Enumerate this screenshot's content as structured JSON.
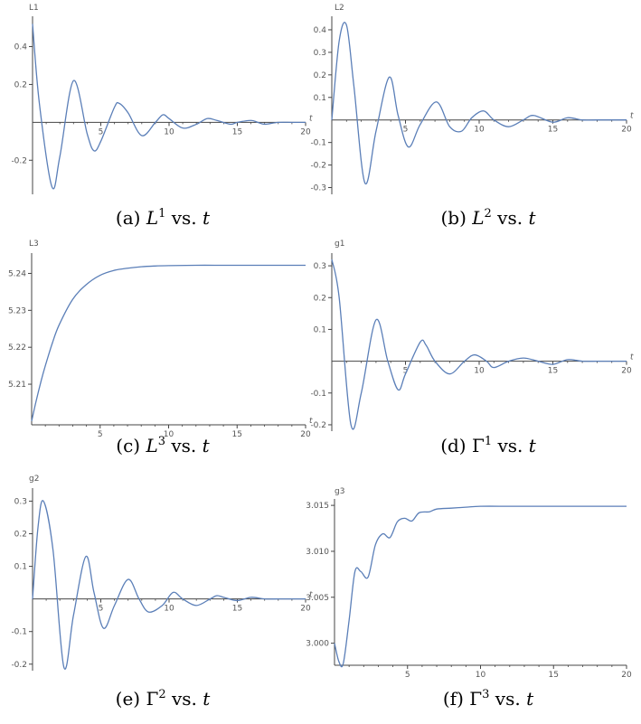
{
  "style": {
    "line_color": "#5b7fb8",
    "axis_color": "#444444",
    "text_color": "#555555"
  },
  "chart_data": [
    {
      "id": "a",
      "type": "line",
      "ylabel": "L1",
      "xlabel": "t",
      "xlim": [
        0,
        20
      ],
      "ylim": [
        -0.38,
        0.56
      ],
      "x_axis_at": 0,
      "xticks": [
        5,
        10,
        15,
        20
      ],
      "yticks": [
        -0.2,
        0.2,
        0.4
      ],
      "caption": {
        "prefix": "(a)",
        "symbol": "L",
        "sup": "1",
        "suffix": "vs.",
        "var": "t"
      },
      "series": [
        {
          "x": [
            0,
            0.5,
            1.42,
            2,
            3,
            4,
            4.5,
            5,
            6,
            6.35,
            7,
            8,
            9,
            9.55,
            10,
            11,
            12,
            12.8,
            13.5,
            14.5,
            15,
            16,
            16.5,
            17,
            18,
            19,
            20
          ],
          "y": [
            0.52,
            0.1,
            -0.34,
            -0.18,
            0.22,
            -0.06,
            -0.15,
            -0.1,
            0.08,
            0.1,
            0.05,
            -0.07,
            0.0,
            0.04,
            0.02,
            -0.03,
            -0.01,
            0.02,
            0.01,
            -0.01,
            0.0,
            0.01,
            0.0,
            -0.01,
            0.0,
            0.0,
            0.0
          ]
        }
      ]
    },
    {
      "id": "b",
      "type": "line",
      "ylabel": "L2",
      "xlabel": "t",
      "xlim": [
        0,
        20
      ],
      "ylim": [
        -0.33,
        0.46
      ],
      "x_axis_at": 0,
      "xticks": [
        5,
        10,
        15,
        20
      ],
      "yticks": [
        -0.3,
        -0.2,
        -0.1,
        0.1,
        0.2,
        0.3,
        0.4
      ],
      "caption": {
        "prefix": "(b)",
        "symbol": "L",
        "sup": "2",
        "suffix": "vs.",
        "var": "t"
      },
      "series": [
        {
          "x": [
            0,
            0.5,
            1,
            1.5,
            2.25,
            3,
            3.9,
            4.5,
            5.2,
            6,
            7.1,
            8,
            8.8,
            9.5,
            10.3,
            11,
            12,
            13,
            13.7,
            15,
            16,
            17,
            18,
            19,
            20
          ],
          "y": [
            0.0,
            0.35,
            0.42,
            0.15,
            -0.28,
            -0.05,
            0.19,
            0.02,
            -0.12,
            -0.02,
            0.08,
            -0.03,
            -0.05,
            0.01,
            0.04,
            0.0,
            -0.03,
            0.0,
            0.02,
            -0.01,
            0.01,
            0.0,
            0.0,
            0.0,
            0.0
          ]
        }
      ]
    },
    {
      "id": "c",
      "type": "line",
      "ylabel": "L3",
      "xlabel": "t",
      "xlim": [
        0,
        20
      ],
      "ylim": [
        5.199,
        5.2455
      ],
      "x_axis_at": 5.199,
      "xticks": [
        5,
        10,
        15,
        20
      ],
      "yticks": [
        5.21,
        5.22,
        5.23,
        5.24
      ],
      "caption": {
        "prefix": "(c)",
        "symbol": "L",
        "sup": "3",
        "suffix": "vs.",
        "var": "t"
      },
      "series": [
        {
          "x": [
            0,
            0.3,
            0.7,
            1,
            1.5,
            2,
            3,
            4,
            5,
            6,
            7,
            8,
            9,
            10,
            12,
            14,
            16,
            18,
            20
          ],
          "y": [
            5.2,
            5.205,
            5.211,
            5.215,
            5.221,
            5.226,
            5.233,
            5.237,
            5.2395,
            5.2408,
            5.2414,
            5.2418,
            5.242,
            5.2421,
            5.2422,
            5.2422,
            5.2422,
            5.2422,
            5.2422
          ]
        }
      ]
    },
    {
      "id": "d",
      "type": "line",
      "ylabel": "g1",
      "xlabel": "t",
      "xlim": [
        0,
        20
      ],
      "ylim": [
        -0.22,
        0.34
      ],
      "x_axis_at": 0,
      "xticks": [
        5,
        10,
        15,
        20
      ],
      "yticks": [
        -0.2,
        -0.1,
        0.1,
        0.2,
        0.3
      ],
      "caption": {
        "prefix": "(d)",
        "symbol": "Γ",
        "sup": "1",
        "suffix": "vs.",
        "var": "t"
      },
      "series": [
        {
          "x": [
            0,
            0.5,
            1.3,
            2,
            3,
            3.8,
            4.5,
            5,
            6,
            6.4,
            7,
            8,
            9,
            9.7,
            10.5,
            11,
            12,
            13,
            14,
            15,
            16,
            17,
            18,
            19,
            20
          ],
          "y": [
            0.32,
            0.2,
            -0.2,
            -0.1,
            0.13,
            0.0,
            -0.09,
            -0.04,
            0.06,
            0.05,
            0.0,
            -0.04,
            0.0,
            0.02,
            0.0,
            -0.02,
            0.0,
            0.01,
            0.0,
            -0.01,
            0.005,
            0.0,
            0.0,
            0.0,
            0.0
          ]
        }
      ]
    },
    {
      "id": "e",
      "type": "line",
      "ylabel": "g2",
      "xlabel": "t",
      "xlim": [
        0,
        20
      ],
      "ylim": [
        -0.22,
        0.34
      ],
      "x_axis_at": 0,
      "xticks": [
        5,
        10,
        15,
        20
      ],
      "yticks": [
        -0.2,
        -0.1,
        0.1,
        0.2,
        0.3
      ],
      "caption": {
        "prefix": "(e)",
        "symbol": "Γ",
        "sup": "2",
        "suffix": "vs.",
        "var": "t"
      },
      "series": [
        {
          "x": [
            0,
            0.4,
            0.8,
            1.5,
            2.3,
            3,
            3.9,
            4.5,
            5.2,
            6,
            7,
            7.8,
            8.5,
            9.5,
            10.3,
            11,
            12,
            13,
            13.5,
            14,
            15,
            16,
            17,
            18,
            19,
            20
          ],
          "y": [
            0.0,
            0.22,
            0.3,
            0.15,
            -0.21,
            -0.05,
            0.13,
            0.02,
            -0.09,
            -0.02,
            0.06,
            0.0,
            -0.04,
            -0.02,
            0.02,
            0.0,
            -0.02,
            0.0,
            0.01,
            0.005,
            -0.005,
            0.005,
            0.0,
            0.0,
            0.0,
            0.0
          ]
        }
      ]
    },
    {
      "id": "f",
      "type": "line",
      "ylabel": "g3",
      "xlabel": "",
      "xlim": [
        0,
        20
      ],
      "ylim": [
        2.9976,
        3.0157
      ],
      "x_axis_at": 2.9976,
      "xticks": [
        5,
        10,
        15,
        20
      ],
      "yticks": [
        3.0,
        3.005,
        3.01,
        3.015
      ],
      "ytick_labels": [
        "3.000",
        "3.005",
        "3.010",
        "3.015"
      ],
      "caption": {
        "prefix": "(f)",
        "symbol": "Γ",
        "sup": "3",
        "suffix": "vs.",
        "var": "t"
      },
      "series": [
        {
          "x": [
            0,
            0.3,
            0.6,
            1,
            1.4,
            1.8,
            2.3,
            2.8,
            3.3,
            3.8,
            4.3,
            4.8,
            5.3,
            5.8,
            6.5,
            7,
            8,
            9,
            10,
            12,
            14,
            16,
            18,
            20
          ],
          "y": [
            3.0,
            2.998,
            2.9978,
            3.0025,
            3.0078,
            3.0078,
            3.0072,
            3.0107,
            3.0119,
            3.0115,
            3.0132,
            3.0136,
            3.0133,
            3.0142,
            3.0143,
            3.0146,
            3.0147,
            3.0148,
            3.0149,
            3.0149,
            3.0149,
            3.0149,
            3.0149,
            3.0149
          ]
        }
      ]
    }
  ]
}
